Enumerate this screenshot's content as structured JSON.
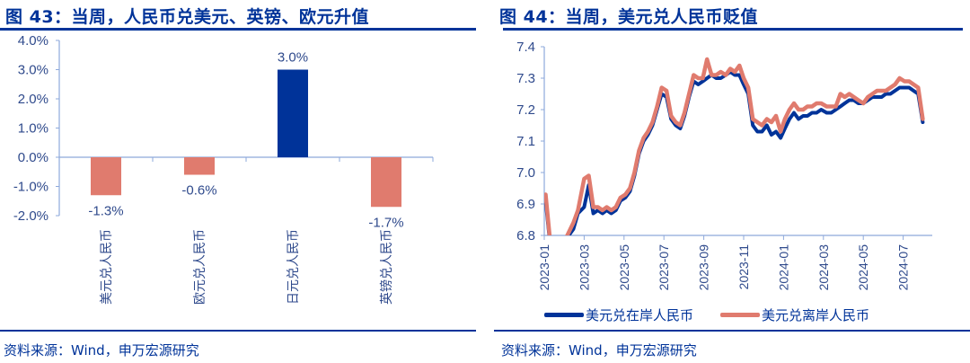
{
  "left": {
    "title": "图 43：当周，人民币兑美元、英镑、欧元升值",
    "source": "资料来源：Wind，申万宏源研究"
  },
  "right": {
    "title": "图 44：当周，美元兑人民币贬值",
    "source": "资料来源：Wind，申万宏源研究",
    "legend": [
      {
        "label": "美元兑在岸人民币",
        "color": "#003399"
      },
      {
        "label": "美元兑离岸人民币",
        "color": "#E07B6E"
      }
    ]
  },
  "colors": {
    "brand": "#003399",
    "negative": "#E07B6E",
    "positive": "#003399",
    "axis": "#8EA9DB",
    "tick_text": "#2F4A8C"
  },
  "chart_data": [
    {
      "type": "bar",
      "title": "图 43：当周，人民币兑美元、英镑、欧元升值",
      "categories": [
        "美元兑人民币",
        "欧元兑人民币",
        "日元兑人民币",
        "英镑兑人民币"
      ],
      "values": [
        -1.3,
        -0.6,
        3.0,
        -1.7
      ],
      "value_labels": [
        "-1.3%",
        "-0.6%",
        "3.0%",
        "-1.7%"
      ],
      "ylim": [
        -2.0,
        4.0
      ],
      "yticks": [
        "4.0%",
        "3.0%",
        "2.0%",
        "1.0%",
        "0.0%",
        "-1.0%",
        "-2.0%"
      ],
      "xlabel": "",
      "ylabel": "",
      "grid": false,
      "legend": null
    },
    {
      "type": "line",
      "title": "图 44：当周，美元兑人民币贬值",
      "ylim": [
        6.8,
        7.4
      ],
      "yticks": [
        "7.4",
        "7.3",
        "7.2",
        "7.1",
        "7.0",
        "6.9",
        "6.8"
      ],
      "xticks": [
        "2023-01",
        "2023-03",
        "2023-05",
        "2023-07",
        "2023-09",
        "2023-11",
        "2024-01",
        "2024-03",
        "2024-05",
        "2024-07"
      ],
      "grid": false,
      "legend_position": "bottom",
      "x": [
        "2023-01-03",
        "2023-01-10",
        "2023-01-17",
        "2023-02-01",
        "2023-02-08",
        "2023-02-15",
        "2023-02-22",
        "2023-03-01",
        "2023-03-08",
        "2023-03-15",
        "2023-03-22",
        "2023-03-29",
        "2023-04-05",
        "2023-04-12",
        "2023-04-19",
        "2023-04-26",
        "2023-05-03",
        "2023-05-10",
        "2023-05-17",
        "2023-05-24",
        "2023-05-31",
        "2023-06-07",
        "2023-06-14",
        "2023-06-21",
        "2023-06-28",
        "2023-07-05",
        "2023-07-12",
        "2023-07-19",
        "2023-07-26",
        "2023-08-02",
        "2023-08-09",
        "2023-08-16",
        "2023-08-23",
        "2023-08-30",
        "2023-09-06",
        "2023-09-13",
        "2023-09-20",
        "2023-09-27",
        "2023-10-04",
        "2023-10-11",
        "2023-10-18",
        "2023-10-25",
        "2023-11-01",
        "2023-11-08",
        "2023-11-15",
        "2023-11-22",
        "2023-11-29",
        "2023-12-06",
        "2023-12-13",
        "2023-12-20",
        "2023-12-27",
        "2024-01-03",
        "2024-01-10",
        "2024-01-17",
        "2024-01-24",
        "2024-01-31",
        "2024-02-07",
        "2024-02-14",
        "2024-02-21",
        "2024-02-28",
        "2024-03-06",
        "2024-03-13",
        "2024-03-20",
        "2024-03-27",
        "2024-04-03",
        "2024-04-10",
        "2024-04-17",
        "2024-04-24",
        "2024-05-01",
        "2024-05-08",
        "2024-05-15",
        "2024-05-22",
        "2024-05-29",
        "2024-06-05",
        "2024-06-12",
        "2024-06-19",
        "2024-06-26",
        "2024-07-03",
        "2024-07-10",
        "2024-07-17",
        "2024-07-24",
        "2024-07-31"
      ],
      "series": [
        {
          "name": "美元兑在岸人民币",
          "color": "#003399",
          "values": [
            6.91,
            6.77,
            6.75,
            6.77,
            6.8,
            6.82,
            6.87,
            6.89,
            6.96,
            6.87,
            6.88,
            6.87,
            6.88,
            6.87,
            6.88,
            6.91,
            6.92,
            6.94,
            6.99,
            7.06,
            7.1,
            7.12,
            7.15,
            7.2,
            7.25,
            7.24,
            7.17,
            7.15,
            7.14,
            7.18,
            7.24,
            7.29,
            7.28,
            7.29,
            7.3,
            7.31,
            7.3,
            7.3,
            7.31,
            7.32,
            7.31,
            7.31,
            7.28,
            7.25,
            7.15,
            7.13,
            7.13,
            7.15,
            7.12,
            7.13,
            7.11,
            7.14,
            7.17,
            7.19,
            7.17,
            7.18,
            7.18,
            7.19,
            7.19,
            7.2,
            7.19,
            7.19,
            7.2,
            7.21,
            7.22,
            7.23,
            7.23,
            7.22,
            7.22,
            7.23,
            7.24,
            7.24,
            7.24,
            7.25,
            7.25,
            7.26,
            7.27,
            7.27,
            7.27,
            7.26,
            7.25,
            7.16
          ]
        },
        {
          "name": "美元兑离岸人民币",
          "color": "#E07B6E",
          "values": [
            6.93,
            6.78,
            6.76,
            6.78,
            6.81,
            6.84,
            6.88,
            6.98,
            6.99,
            6.89,
            6.89,
            6.88,
            6.89,
            6.88,
            6.89,
            6.92,
            6.93,
            6.95,
            7.0,
            7.07,
            7.11,
            7.13,
            7.16,
            7.21,
            7.27,
            7.26,
            7.18,
            7.16,
            7.15,
            7.19,
            7.25,
            7.31,
            7.3,
            7.3,
            7.36,
            7.31,
            7.31,
            7.32,
            7.31,
            7.33,
            7.32,
            7.34,
            7.3,
            7.27,
            7.17,
            7.16,
            7.15,
            7.17,
            7.16,
            7.18,
            7.13,
            7.17,
            7.2,
            7.22,
            7.2,
            7.2,
            7.21,
            7.21,
            7.22,
            7.22,
            7.21,
            7.21,
            7.21,
            7.25,
            7.24,
            7.25,
            7.24,
            7.23,
            7.22,
            7.24,
            7.25,
            7.26,
            7.26,
            7.26,
            7.27,
            7.28,
            7.3,
            7.29,
            7.29,
            7.28,
            7.27,
            7.17
          ]
        }
      ]
    }
  ]
}
